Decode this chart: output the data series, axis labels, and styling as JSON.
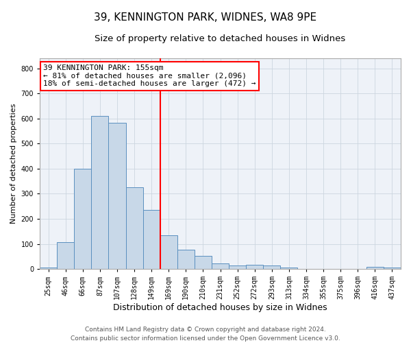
{
  "title": "39, KENNINGTON PARK, WIDNES, WA8 9PE",
  "subtitle": "Size of property relative to detached houses in Widnes",
  "xlabel": "Distribution of detached houses by size in Widnes",
  "ylabel": "Number of detached properties",
  "categories": [
    "25sqm",
    "46sqm",
    "66sqm",
    "87sqm",
    "107sqm",
    "128sqm",
    "149sqm",
    "169sqm",
    "190sqm",
    "210sqm",
    "231sqm",
    "252sqm",
    "272sqm",
    "293sqm",
    "313sqm",
    "334sqm",
    "355sqm",
    "375sqm",
    "396sqm",
    "416sqm",
    "437sqm"
  ],
  "values": [
    5,
    107,
    401,
    611,
    583,
    327,
    236,
    134,
    77,
    52,
    22,
    14,
    16,
    15,
    5,
    0,
    0,
    0,
    0,
    8,
    5
  ],
  "bar_color": "#c8d8e8",
  "bar_edge_color": "#5a8fbf",
  "vline_index": 6,
  "vline_color": "red",
  "annotation_text": "39 KENNINGTON PARK: 155sqm\n← 81% of detached houses are smaller (2,096)\n18% of semi-detached houses are larger (472) →",
  "annotation_box_color": "white",
  "annotation_box_edge_color": "red",
  "ylim": [
    0,
    840
  ],
  "yticks": [
    0,
    100,
    200,
    300,
    400,
    500,
    600,
    700,
    800
  ],
  "grid_color": "#ccd6e0",
  "background_color": "#eef2f8",
  "footer": "Contains HM Land Registry data © Crown copyright and database right 2024.\nContains public sector information licensed under the Open Government Licence v3.0.",
  "title_fontsize": 11,
  "subtitle_fontsize": 9.5,
  "xlabel_fontsize": 9,
  "ylabel_fontsize": 8,
  "tick_fontsize": 7,
  "annotation_fontsize": 8,
  "footer_fontsize": 6.5
}
